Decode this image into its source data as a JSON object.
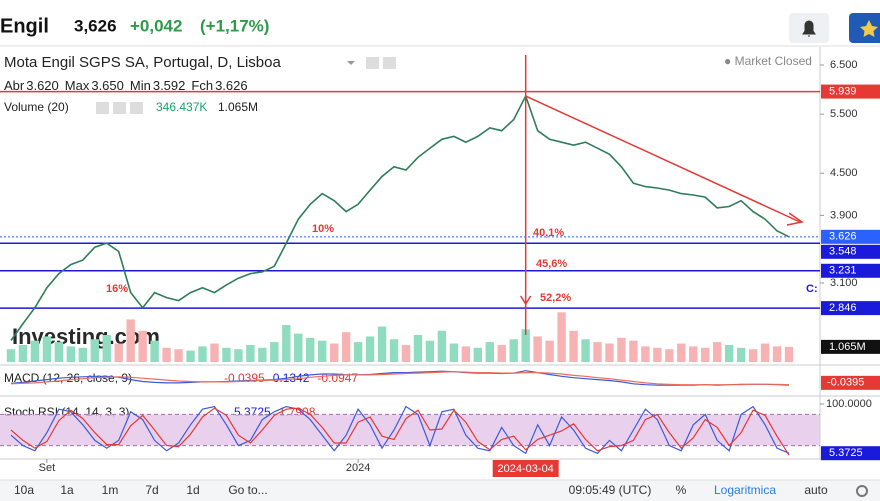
{
  "header": {
    "symbol": "Engil",
    "price": "3,626",
    "change": "+0,042",
    "change_pct": "(+1,17%)"
  },
  "chart_data": {
    "type": "line",
    "title": "Mota Engil SGPS SA, Portugal, D, Lisboa",
    "status": "Market Closed",
    "ohlc_legend": [
      "Abr",
      "3.620",
      "Max",
      "3.650",
      "Min",
      "3.592",
      "Fch",
      "3.626"
    ],
    "watermark": "Investing.com",
    "log_scale": true,
    "color": "#2e7d5b",
    "categories": [
      null,
      null,
      null,
      "Set",
      null,
      null,
      null,
      null,
      null,
      null,
      null,
      null,
      null,
      null,
      null,
      null,
      null,
      null,
      null,
      null,
      null,
      null,
      null,
      null,
      null,
      null,
      null,
      null,
      null,
      "2024",
      null,
      null,
      null,
      null,
      null,
      null,
      null,
      null,
      null,
      null,
      null,
      null,
      null,
      "2024-03-04",
      null,
      null,
      null,
      null,
      null,
      null,
      null,
      null,
      null,
      null,
      null,
      null,
      null,
      null,
      null,
      null,
      null,
      null,
      null,
      null,
      null,
      null
    ],
    "crosshair": "2024-03-04",
    "values": [
      2.55,
      2.7,
      2.85,
      3.05,
      3.2,
      3.3,
      3.35,
      3.5,
      3.55,
      3.45,
      3.0,
      2.85,
      3.0,
      2.95,
      2.92,
      3.0,
      3.05,
      3.0,
      3.08,
      3.15,
      3.2,
      3.22,
      3.28,
      3.55,
      3.85,
      4.05,
      4.2,
      4.1,
      3.95,
      4.05,
      4.25,
      4.45,
      4.6,
      4.55,
      4.75,
      4.9,
      5.05,
      5.1,
      5.0,
      5.1,
      5.25,
      5.2,
      5.4,
      5.85,
      5.2,
      5.05,
      5.0,
      4.95,
      5.0,
      4.9,
      4.8,
      4.6,
      4.35,
      4.3,
      4.28,
      4.25,
      4.2,
      4.18,
      4.15,
      4.0,
      4.02,
      4.1,
      3.95,
      3.85,
      3.7,
      3.626
    ],
    "ylim": [
      2.37,
      6.84
    ],
    "yticks": [
      {
        "value": 6.5,
        "label": "6.500"
      },
      {
        "value": 5.5,
        "label": "5.500"
      },
      {
        "value": 4.5,
        "label": "4.500"
      },
      {
        "value": 3.9,
        "label": "3.900"
      },
      {
        "value": 3.1,
        "label": "3.100"
      }
    ],
    "price_badges": [
      {
        "value": 5.939,
        "label": "5.939",
        "color": "#e53935"
      },
      {
        "value": 3.626,
        "label": "3.626",
        "color": "#2962ff",
        "style": "dotted"
      },
      {
        "value": 3.548,
        "label": "3.548",
        "color": "#1a1adb"
      },
      {
        "value": 3.231,
        "label": "3.231",
        "color": "#1a1adb"
      },
      {
        "value": 2.846,
        "label": "2.846",
        "color": "#1a1adb"
      }
    ],
    "annotations": [
      "10%",
      "40,1%",
      "45,6%",
      "52,2%",
      "16%",
      "C:"
    ],
    "volume": {
      "name": "Volume (20)",
      "avg_label": "346.437K",
      "up_color": "#8fdcc0",
      "down_color": "#f7b3b3",
      "ylim": [
        0,
        5000000
      ],
      "values": [
        900000,
        1200000,
        1500000,
        1800000,
        1400000,
        1100000,
        1000000,
        1600000,
        1900000,
        1300000,
        3000000,
        2200000,
        1500000,
        1000000,
        900000,
        800000,
        1100000,
        1300000,
        1000000,
        900000,
        1200000,
        1000000,
        1400000,
        2600000,
        2000000,
        1700000,
        1500000,
        1300000,
        2100000,
        1400000,
        1800000,
        2500000,
        1600000,
        1200000,
        1900000,
        1500000,
        2200000,
        1300000,
        1100000,
        1000000,
        1400000,
        1200000,
        1600000,
        2300000,
        1800000,
        1500000,
        3500000,
        2200000,
        1600000,
        1400000,
        1300000,
        1700000,
        1500000,
        1100000,
        1000000,
        900000,
        1300000,
        1100000,
        1000000,
        1400000,
        1200000,
        1000000,
        900000,
        1300000,
        1100000,
        1065000
      ],
      "badge": {
        "value": 1065000,
        "label": "1.065M"
      }
    },
    "macd": {
      "name": "MACD (12, 26, close, 9)",
      "legend_values": [
        {
          "text": "-0.0395",
          "color": "#e53935"
        },
        {
          "text": "0.1342",
          "color": "#1a1adb"
        },
        {
          "text": "-0.0947",
          "color": "#e53935"
        }
      ],
      "ylim": [
        -0.3,
        0.3
      ],
      "series": [
        {
          "color": "#3b5bdb",
          "values": [
            -0.05,
            -0.03,
            0,
            0.03,
            0.06,
            0.08,
            0.09,
            0.1,
            0.1,
            0.08,
            0.03,
            -0.01,
            -0.03,
            -0.04,
            -0.04,
            -0.03,
            -0.02,
            -0.02,
            -0.01,
            0,
            0.01,
            0.02,
            0.03,
            0.06,
            0.1,
            0.13,
            0.15,
            0.15,
            0.13,
            0.13,
            0.14,
            0.16,
            0.18,
            0.18,
            0.19,
            0.2,
            0.21,
            0.2,
            0.18,
            0.17,
            0.17,
            0.16,
            0.17,
            0.22,
            0.18,
            0.14,
            0.1,
            0.07,
            0.05,
            0.03,
            0.01,
            -0.02,
            -0.06,
            -0.08,
            -0.09,
            -0.09,
            -0.09,
            -0.09,
            -0.08,
            -0.09,
            -0.08,
            -0.07,
            -0.07,
            -0.07,
            -0.08,
            -0.09
          ]
        },
        {
          "color": "#ef6c5a",
          "values": [
            -0.06,
            -0.05,
            -0.04,
            -0.02,
            0,
            0.03,
            0.05,
            0.07,
            0.08,
            0.09,
            0.08,
            0.06,
            0.04,
            0.02,
            0,
            -0.01,
            -0.02,
            -0.02,
            -0.02,
            -0.01,
            0,
            0.01,
            0.02,
            0.03,
            0.05,
            0.08,
            0.1,
            0.12,
            0.13,
            0.13,
            0.13,
            0.14,
            0.15,
            0.16,
            0.17,
            0.18,
            0.19,
            0.2,
            0.19,
            0.18,
            0.18,
            0.17,
            0.17,
            0.18,
            0.18,
            0.17,
            0.15,
            0.12,
            0.1,
            0.07,
            0.05,
            0.02,
            -0.01,
            -0.04,
            -0.06,
            -0.07,
            -0.08,
            -0.08,
            -0.08,
            -0.08,
            -0.08,
            -0.08,
            -0.07,
            -0.07,
            -0.07,
            -0.08
          ]
        }
      ],
      "badge": {
        "value": -0.0395,
        "label": "-0.0395"
      }
    },
    "stoch": {
      "name": "Stoch RSI (14, 14, 3, 3)",
      "legend_values": [
        {
          "text": "5.3725",
          "color": "#1a1adb"
        },
        {
          "text": "1.7908",
          "color": "#e53935"
        }
      ],
      "ylim": [
        0,
        100
      ],
      "yticks": [
        {
          "value": 100,
          "label": "100.0000"
        }
      ],
      "band": [
        20,
        80
      ],
      "series": [
        {
          "color": "#3b5bdb",
          "values": [
            40,
            20,
            10,
            45,
            90,
            85,
            60,
            30,
            15,
            30,
            85,
            70,
            30,
            10,
            25,
            60,
            90,
            95,
            60,
            20,
            30,
            70,
            85,
            95,
            90,
            70,
            40,
            10,
            40,
            90,
            60,
            15,
            50,
            95,
            80,
            20,
            85,
            90,
            40,
            15,
            10,
            55,
            20,
            5,
            60,
            20,
            75,
            50,
            15,
            5,
            30,
            10,
            50,
            90,
            70,
            20,
            10,
            60,
            80,
            30,
            10,
            80,
            95,
            60,
            15,
            5.3725
          ]
        },
        {
          "color": "#e53935",
          "values": [
            50,
            30,
            15,
            28,
            68,
            88,
            72,
            45,
            22,
            22,
            58,
            78,
            50,
            20,
            18,
            42,
            75,
            92,
            78,
            40,
            25,
            50,
            78,
            90,
            92,
            80,
            55,
            25,
            25,
            65,
            75,
            38,
            32,
            72,
            88,
            50,
            52,
            88,
            65,
            28,
            12,
            32,
            38,
            12,
            32,
            40,
            48,
            62,
            32,
            10,
            18,
            20,
            30,
            70,
            80,
            45,
            15,
            35,
            70,
            55,
            20,
            45,
            88,
            78,
            38,
            1.7908
          ]
        }
      ],
      "badge": {
        "value": 5.3725,
        "label": "5.3725"
      }
    }
  },
  "toolbar": {
    "buttons": [
      "10a",
      "1a",
      "1m",
      "7d",
      "1d",
      "Go to..."
    ],
    "time": "09:05:49 (UTC)",
    "options": [
      "%",
      "Logaritmica",
      "auto"
    ]
  }
}
